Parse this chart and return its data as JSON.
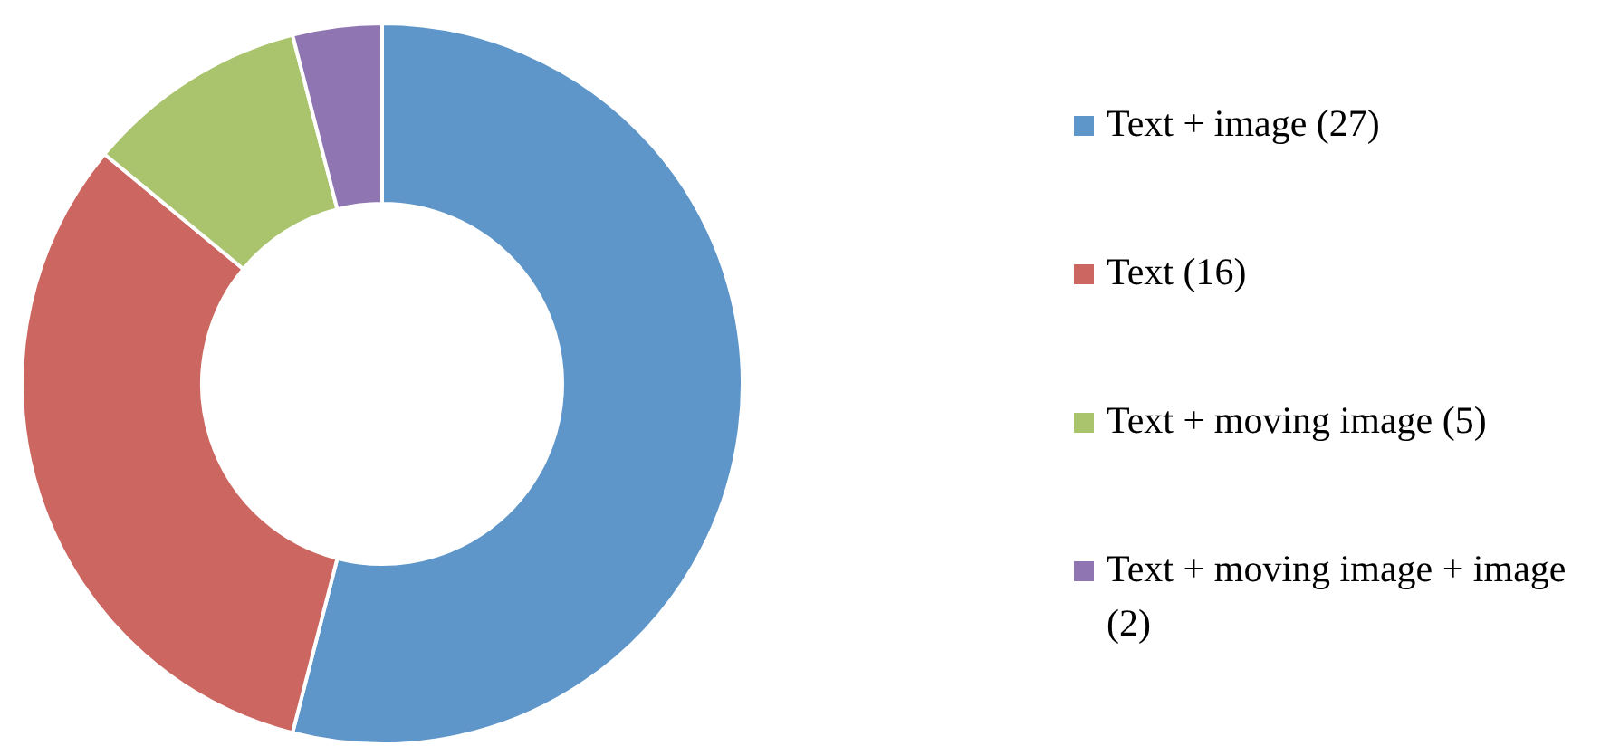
{
  "chart_data": {
    "type": "donut",
    "categories": [
      "Text + image (27)",
      "Text (16)",
      "Text + moving image (5)",
      "Text + moving image + image (2)"
    ],
    "values": [
      27,
      16,
      5,
      2
    ],
    "colors": [
      "#5f96c9",
      "#cc6660",
      "#a9c46c",
      "#8f76b2"
    ],
    "legend": "right"
  }
}
